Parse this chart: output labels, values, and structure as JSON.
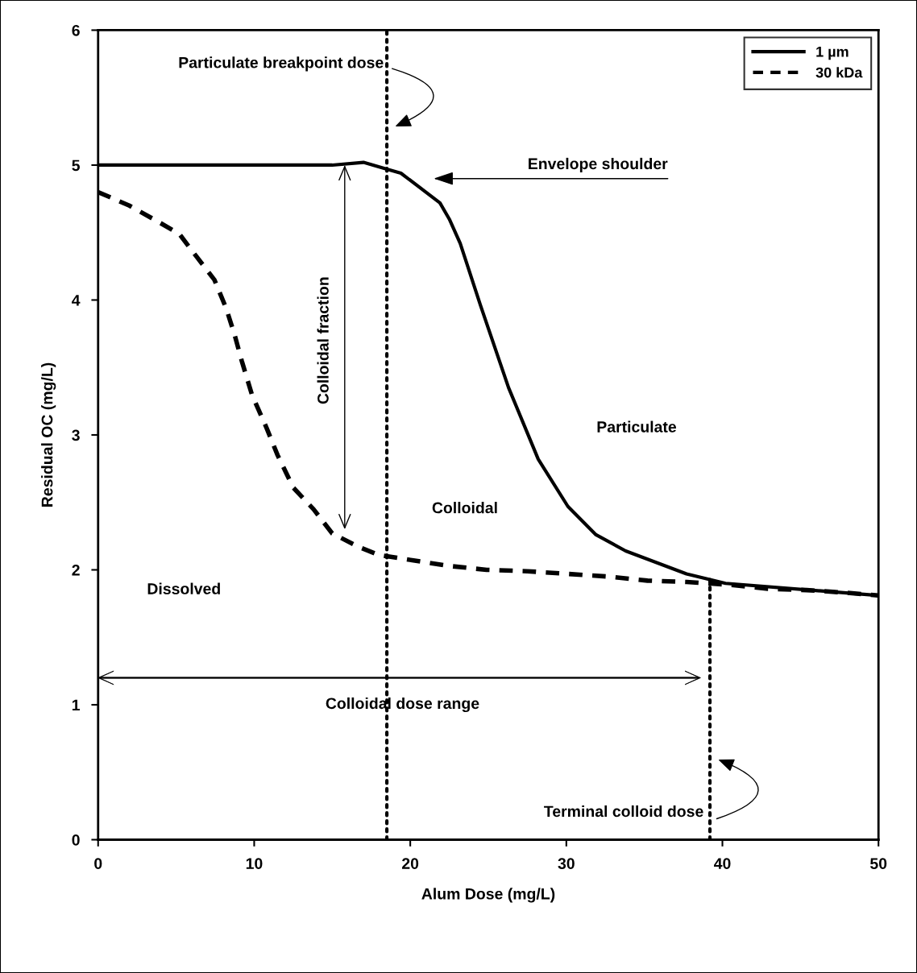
{
  "chart_data": {
    "type": "line",
    "xlabel": "Alum Dose (mg/L)",
    "ylabel": "Residual OC (mg/L)",
    "xlim": [
      0,
      50
    ],
    "ylim": [
      0,
      6
    ],
    "xticks": [
      0,
      10,
      20,
      30,
      40,
      50
    ],
    "yticks": [
      0,
      1,
      2,
      3,
      4,
      5,
      6
    ],
    "grid": false,
    "legend": "top right",
    "marker": "none",
    "series": [
      {
        "name": "1 µm",
        "color": "#000000",
        "line_style": "solid",
        "x": [
          0,
          15,
          17,
          18.5,
          19.4,
          21.9,
          22.5,
          23.2,
          24.5,
          26.3,
          28.2,
          30.1,
          31.9,
          33.8,
          37.7,
          40.2,
          50
        ],
        "values": [
          5.0,
          5.0,
          5.02,
          4.97,
          4.94,
          4.72,
          4.6,
          4.42,
          3.96,
          3.35,
          2.82,
          2.47,
          2.26,
          2.14,
          1.97,
          1.9,
          1.81
        ]
      },
      {
        "name": "30 kDa",
        "color": "#000000",
        "line_style": "dashed",
        "x": [
          0,
          2,
          4,
          5.2,
          6.25,
          7.45,
          8.2,
          8.75,
          9.2,
          9.85,
          10.8,
          11.5,
          12.5,
          13.8,
          15,
          16.7,
          18,
          20.2,
          22.4,
          24.9,
          27.5,
          30.1,
          32.7,
          35.2,
          37.7,
          40.4,
          42.9,
          45.4,
          48,
          50
        ],
        "values": [
          4.8,
          4.7,
          4.57,
          4.49,
          4.33,
          4.15,
          3.94,
          3.74,
          3.55,
          3.3,
          3.05,
          2.85,
          2.61,
          2.45,
          2.27,
          2.17,
          2.11,
          2.07,
          2.03,
          2.0,
          1.99,
          1.97,
          1.95,
          1.92,
          1.91,
          1.89,
          1.86,
          1.85,
          1.83,
          1.81
        ]
      }
    ],
    "ref_lines": [
      {
        "axis": "x",
        "value": 18.5,
        "label": "Particulate breakpoint dose",
        "line_style": "dotted",
        "color": "#000000"
      },
      {
        "axis": "x",
        "value": 39.2,
        "label": "Terminal colloid dose",
        "line_style": "dotted",
        "color": "#000000"
      }
    ],
    "annotations": [
      "Envelope shoulder",
      "Colloidal fraction",
      "Colloidal dose range",
      "Particulate",
      "Colloidal",
      "Dissolved"
    ]
  }
}
